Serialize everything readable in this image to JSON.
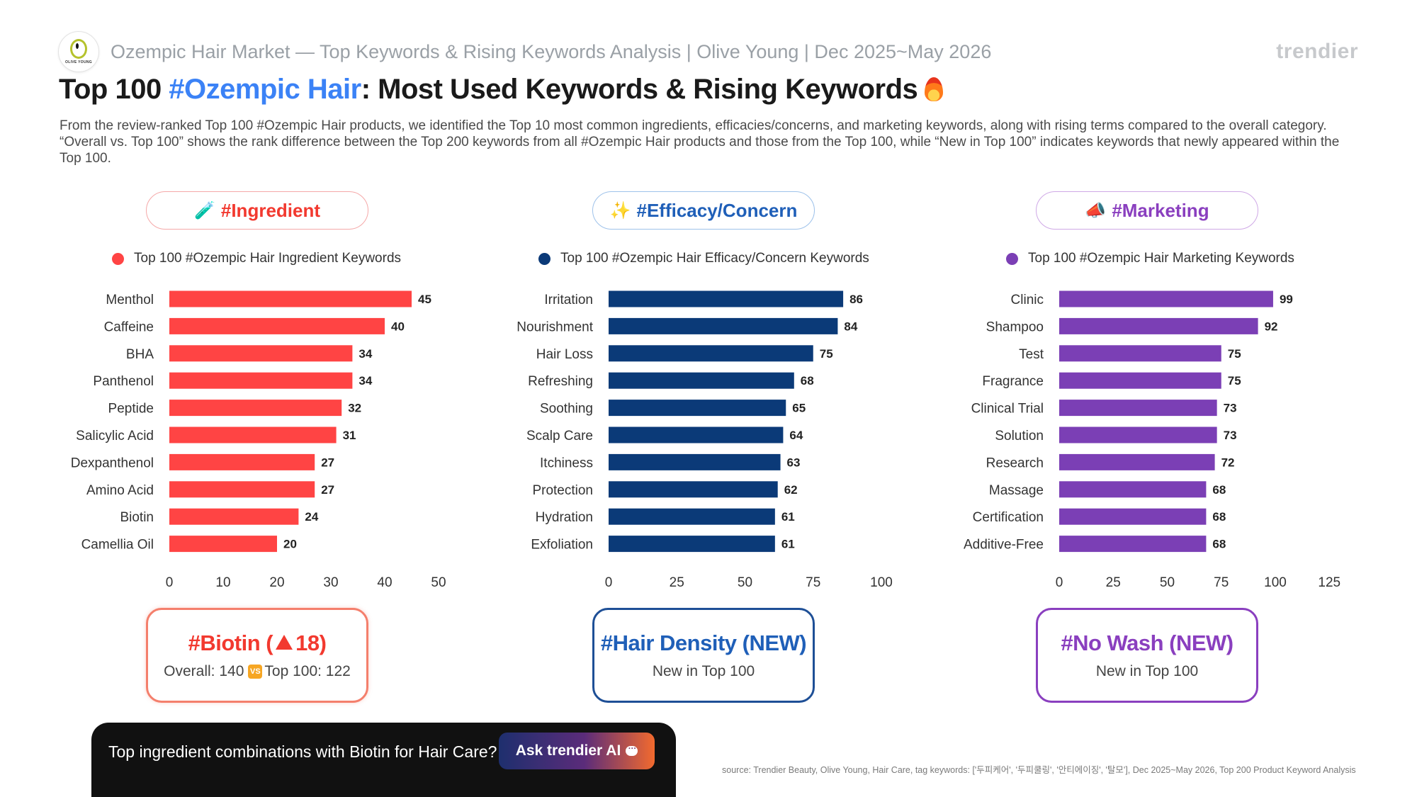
{
  "header": {
    "logo_text": "OLIVE YOUNG",
    "subtitle": "Ozempic Hair Market — Top Keywords & Rising Keywords Analysis | Olive Young | Dec 2025~May 2026",
    "brand": "trendier"
  },
  "title": {
    "part1": "Top 100 ",
    "accent": "#Ozempic Hair",
    "part2": ": Most Used Keywords & Rising Keywords",
    "icon": "fire-icon"
  },
  "description": "From the review-ranked Top 100 #Ozempic Hair products, we identified the Top 10 most common ingredients, efficacies/concerns, and marketing keywords, along with rising terms compared to the overall category. “Overall vs. Top 100” shows the rank difference between the Top 200 keywords from all #Ozempic Hair products and those from the Top 100, while “New in Top 100” indicates keywords that newly appeared within the Top 100.",
  "sections": {
    "ingredient": {
      "label": "#Ingredient",
      "icon": "test-tube-icon",
      "icon_glyph": "🧪",
      "color": "#ff4444",
      "legend": "Top 100 #Ozempic Hair Ingredient Keywords"
    },
    "efficacy": {
      "label": "#Efficacy/Concern",
      "icon": "sparkles-icon",
      "icon_glyph": "✨",
      "color": "#0b3a78",
      "legend": "Top 100 #Ozempic Hair Efficacy/Concern Keywords"
    },
    "marketing": {
      "label": "#Marketing",
      "icon": "megaphone-icon",
      "icon_glyph": "📣",
      "color": "#7b3fb5",
      "legend": "Top 100 #Ozempic Hair Marketing Keywords"
    }
  },
  "chart_data": [
    {
      "type": "bar",
      "orientation": "horizontal",
      "categories": [
        "Menthol",
        "Caffeine",
        "BHA",
        "Panthenol",
        "Peptide",
        "Salicylic Acid",
        "Dexpanthenol",
        "Amino Acid",
        "Biotin",
        "Camellia Oil"
      ],
      "values": [
        45,
        40,
        34,
        34,
        32,
        31,
        27,
        27,
        24,
        20
      ],
      "xlim": [
        0,
        50
      ],
      "xticks": [
        "0",
        "10",
        "20",
        "30",
        "40",
        "50"
      ],
      "color": "#ff4444",
      "grid": false
    },
    {
      "type": "bar",
      "orientation": "horizontal",
      "categories": [
        "Irritation",
        "Nourishment",
        "Hair Loss",
        "Refreshing",
        "Soothing",
        "Scalp Care",
        "Itchiness",
        "Protection",
        "Hydration",
        "Exfoliation"
      ],
      "values": [
        86,
        84,
        75,
        68,
        65,
        64,
        63,
        62,
        61,
        61
      ],
      "xlim": [
        0,
        100
      ],
      "xticks": [
        "0",
        "25",
        "50",
        "75",
        "100"
      ],
      "color": "#0b3a78",
      "grid": false
    },
    {
      "type": "bar",
      "orientation": "horizontal",
      "categories": [
        "Clinic",
        "Shampoo",
        "Test",
        "Fragrance",
        "Clinical Trial",
        "Solution",
        "Research",
        "Massage",
        "Certification",
        "Additive-Free"
      ],
      "values": [
        99,
        92,
        75,
        75,
        73,
        73,
        72,
        68,
        68,
        68
      ],
      "xlim": [
        0,
        125
      ],
      "xticks": [
        "0",
        "25",
        "50",
        "75",
        "100",
        "125"
      ],
      "color": "#7b3fb5",
      "grid": false
    }
  ],
  "cards": {
    "ingredient": {
      "keyword": "#Biotin (",
      "change": "18",
      "close": ")",
      "overall": "Overall: 140",
      "vs": "VS",
      "top100": "Top 100: 122"
    },
    "efficacy": {
      "keyword": "#Hair Density (NEW)",
      "note": "New in Top 100"
    },
    "marketing": {
      "keyword": "#No Wash (NEW)",
      "note": "New in Top 100"
    }
  },
  "ai_bar": {
    "question": "Top ingredient combinations with Biotin for Hair Care?",
    "button": "Ask trendier AI"
  },
  "source": "source: Trendier Beauty, Olive Young, Hair Care, tag keywords: ['두피케어', '두피쿨링', '안티에이징', '탈모'], Dec 2025~May 2026, Top 200 Product Keyword Analysis"
}
